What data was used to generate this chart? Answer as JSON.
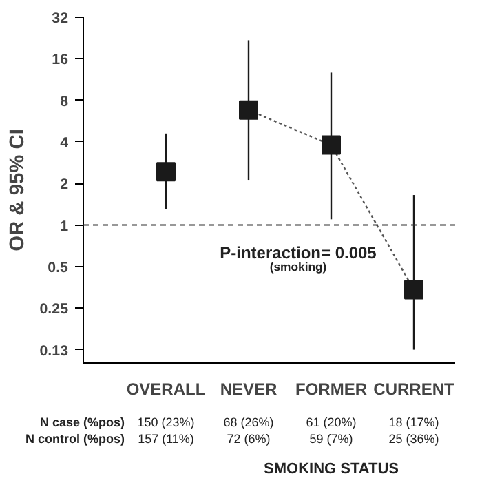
{
  "chart_data": {
    "type": "scatter",
    "ylabel": "OR & 95% CI",
    "log": true,
    "categories": [
      "OVERALL",
      "NEVER",
      "FORMER",
      "CURRENT"
    ],
    "series": [
      {
        "color": "#1a1a1a",
        "marker": "square",
        "values": [
          2.43,
          6.8,
          3.8,
          0.34
        ],
        "errors": [
          [
            1.3,
            4.6
          ],
          [
            2.1,
            21.8
          ],
          [
            1.1,
            12.7
          ],
          [
            0.125,
            1.65
          ]
        ]
      },
      {
        "type": "line",
        "color": "#555555",
        "line_style": "dotted",
        "marker": "none",
        "values": [
          null,
          6.8,
          3.8,
          0.34
        ]
      }
    ],
    "ylim": [
      0.1,
      32
    ],
    "yticks": [
      {
        "value": 0.125,
        "label": "0.13"
      },
      0.25,
      0.5,
      1,
      2,
      4,
      8,
      16,
      32
    ],
    "ref_lines": [
      {
        "axis": "y",
        "value": 1,
        "line_style": "dashed",
        "color": "#333333"
      }
    ],
    "grid": false,
    "annotations": [
      "N case (%pos)",
      "150 (23%)",
      "68 (26%)",
      "61 (20%)",
      "18 (17%)",
      "N control (%pos)",
      "157 (11%)",
      "72 (6%)",
      "59 (7%)",
      "25 (36%)",
      "SMOKING STATUS",
      "P-interaction= 0.005",
      "(smoking)"
    ]
  }
}
